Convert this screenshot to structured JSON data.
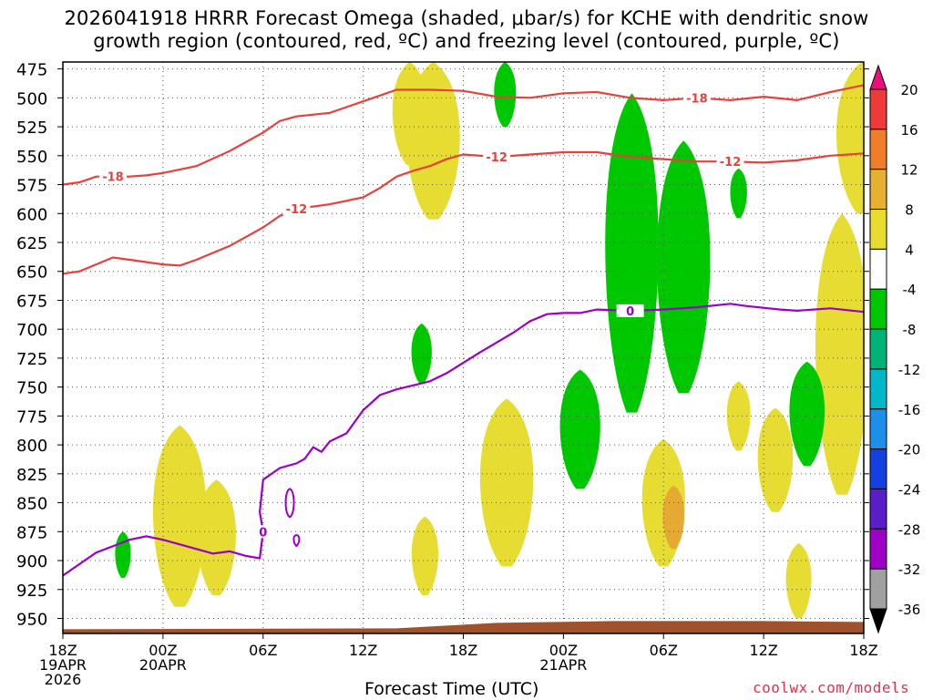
{
  "chart": {
    "title_line1": "2026041918 HRRR Forecast Omega (shaded, μbar/s) for KCHE with dendritic snow",
    "title_line2": "growth region (contoured, red, ºC) and freezing level (contoured, purple, ºC)",
    "credit": "coolwx.com/models"
  },
  "chart_data": {
    "type": "heatmap",
    "title": "2026041918 HRRR Forecast Omega (shaded, μbar/s) for KCHE with dendritic snow growth region (contoured, red, ºC) and freezing level (contoured, purple, ºC)",
    "xlabel": "Forecast Time (UTC)",
    "ylabel": "",
    "x_range_hours": [
      0,
      48
    ],
    "y_axis": "pressure (mb), inverted",
    "ylim": [
      963,
      469
    ],
    "grid": true,
    "y_ticks": [
      475,
      500,
      525,
      550,
      575,
      600,
      625,
      650,
      675,
      700,
      725,
      750,
      775,
      800,
      825,
      850,
      875,
      900,
      925,
      950
    ],
    "x_ticks": [
      {
        "h": 0,
        "lines": [
          "18Z",
          "19APR",
          "2026"
        ]
      },
      {
        "h": 6,
        "lines": [
          "00Z",
          "20APR"
        ]
      },
      {
        "h": 12,
        "lines": [
          "06Z"
        ]
      },
      {
        "h": 18,
        "lines": [
          "12Z"
        ]
      },
      {
        "h": 24,
        "lines": [
          "18Z"
        ]
      },
      {
        "h": 30,
        "lines": [
          "00Z",
          "21APR"
        ]
      },
      {
        "h": 36,
        "lines": [
          "06Z"
        ]
      },
      {
        "h": 42,
        "lines": [
          "12Z"
        ]
      },
      {
        "h": 48,
        "lines": [
          "18Z"
        ]
      }
    ],
    "colorbar": {
      "labels": [
        "20",
        "16",
        "12",
        "8",
        "4",
        "-4",
        "-8",
        "-12",
        "-16",
        "-20",
        "-24",
        "-28",
        "-32",
        "-36"
      ],
      "colors": [
        "#e8107a",
        "#ee3a38",
        "#f07e28",
        "#e8b030",
        "#e8dc30",
        "#ffffff",
        "#00c800",
        "#00b478",
        "#00b8c8",
        "#1c90e8",
        "#1440e0",
        "#5a1ec8",
        "#9e00c8",
        "#a0a0a0",
        "#000000"
      ]
    },
    "series": [
      {
        "contour": "-18",
        "points": [
          [
            0,
            575
          ],
          [
            1,
            573
          ],
          [
            2,
            568
          ],
          [
            3,
            568
          ],
          [
            4,
            568
          ],
          [
            5,
            567
          ],
          [
            6,
            565
          ],
          [
            8,
            559
          ],
          [
            10,
            546
          ],
          [
            11,
            538
          ],
          [
            12,
            530
          ],
          [
            13,
            520
          ],
          [
            14,
            516
          ],
          [
            16,
            513
          ],
          [
            17,
            508
          ],
          [
            18,
            503
          ],
          [
            20,
            493
          ],
          [
            22,
            493
          ],
          [
            24,
            494
          ],
          [
            26,
            499
          ],
          [
            28,
            500
          ],
          [
            30,
            496
          ],
          [
            32,
            495
          ],
          [
            34,
            500
          ],
          [
            36,
            502
          ],
          [
            38,
            500
          ],
          [
            40,
            502
          ],
          [
            42,
            499
          ],
          [
            44,
            502
          ],
          [
            46,
            495
          ],
          [
            48,
            489
          ]
        ],
        "labels_at_h": [
          3,
          38
        ]
      },
      {
        "contour": "-12",
        "points": [
          [
            0,
            652
          ],
          [
            1,
            650
          ],
          [
            2,
            644
          ],
          [
            3,
            638
          ],
          [
            4,
            640
          ],
          [
            6,
            644
          ],
          [
            7,
            645
          ],
          [
            8,
            640
          ],
          [
            10,
            628
          ],
          [
            11,
            620
          ],
          [
            12,
            612
          ],
          [
            13,
            602
          ],
          [
            14,
            596
          ],
          [
            16,
            592
          ],
          [
            18,
            586
          ],
          [
            19,
            578
          ],
          [
            20,
            568
          ],
          [
            21,
            563
          ],
          [
            22,
            559
          ],
          [
            23,
            553
          ],
          [
            24,
            549
          ],
          [
            26,
            551
          ],
          [
            28,
            549
          ],
          [
            30,
            547
          ],
          [
            32,
            547
          ],
          [
            34,
            551
          ],
          [
            36,
            553
          ],
          [
            38,
            555
          ],
          [
            40,
            555
          ],
          [
            42,
            556
          ],
          [
            44,
            554
          ],
          [
            46,
            550
          ],
          [
            48,
            548
          ]
        ],
        "labels_at_h": [
          15,
          26,
          40
        ]
      },
      {
        "contour": "0",
        "points": [
          [
            0,
            913
          ],
          [
            2,
            893
          ],
          [
            4,
            882
          ],
          [
            5,
            879
          ],
          [
            6,
            882
          ],
          [
            8,
            890
          ],
          [
            9,
            894
          ],
          [
            10,
            892
          ],
          [
            11,
            896
          ],
          [
            11.8,
            898
          ],
          [
            12,
            875
          ],
          [
            11.8,
            858
          ],
          [
            12,
            830
          ],
          [
            13,
            820
          ],
          [
            14,
            816
          ],
          [
            14.5,
            812
          ],
          [
            15,
            802
          ],
          [
            15.5,
            806
          ],
          [
            16,
            797
          ],
          [
            17,
            790
          ],
          [
            18,
            770
          ],
          [
            19,
            757
          ],
          [
            20,
            752
          ],
          [
            22,
            745
          ],
          [
            23,
            738
          ],
          [
            25,
            720
          ],
          [
            27,
            703
          ],
          [
            28,
            693
          ],
          [
            29,
            687
          ],
          [
            30,
            686
          ],
          [
            31,
            686
          ],
          [
            32,
            683
          ],
          [
            34,
            684
          ],
          [
            36,
            683
          ],
          [
            38,
            681
          ],
          [
            40,
            678
          ],
          [
            41,
            680
          ],
          [
            43,
            683
          ],
          [
            44,
            684
          ],
          [
            46,
            682
          ],
          [
            48,
            685
          ]
        ],
        "labels_at_h": [
          12,
          35
        ]
      }
    ],
    "shaded_regions": [
      {
        "range": "4 to 8",
        "center_h": 7,
        "top_mb": 783,
        "bottom_mb": 940
      },
      {
        "range": "4 to 8",
        "center_h": 9.2,
        "top_mb": 830,
        "bottom_mb": 930
      },
      {
        "range": "4 to 8",
        "center_h": 20.8,
        "top_mb": 469,
        "bottom_mb": 558
      },
      {
        "range": "4 to 8",
        "center_h": 22.2,
        "top_mb": 469,
        "bottom_mb": 605
      },
      {
        "range": "4 to 8",
        "center_h": 21.7,
        "top_mb": 862,
        "bottom_mb": 930
      },
      {
        "range": "4 to 8",
        "center_h": 26.6,
        "top_mb": 760,
        "bottom_mb": 905
      },
      {
        "range": "4 to 8",
        "center_h": 36,
        "top_mb": 795,
        "bottom_mb": 905
      },
      {
        "range": "8 to 12",
        "center_h": 36.6,
        "top_mb": 835,
        "bottom_mb": 890
      },
      {
        "range": "4 to 8",
        "center_h": 40.5,
        "top_mb": 745,
        "bottom_mb": 805
      },
      {
        "range": "4 to 8",
        "center_h": 42.7,
        "top_mb": 768,
        "bottom_mb": 858
      },
      {
        "range": "4 to 8",
        "center_h": 44.1,
        "top_mb": 885,
        "bottom_mb": 950
      },
      {
        "range": "4 to 8",
        "center_h": 46.7,
        "top_mb": 600,
        "bottom_mb": 843
      },
      {
        "range": "4 to 8",
        "center_h": 47.9,
        "top_mb": 469,
        "bottom_mb": 600
      },
      {
        "range": "-8 to -4",
        "center_h": 3.6,
        "top_mb": 875,
        "bottom_mb": 915
      },
      {
        "range": "-8 to -4",
        "center_h": 21.5,
        "top_mb": 695,
        "bottom_mb": 747
      },
      {
        "range": "-8 to -4",
        "center_h": 26.5,
        "top_mb": 469,
        "bottom_mb": 525
      },
      {
        "range": "-8 to -4",
        "center_h": 34.1,
        "top_mb": 496,
        "bottom_mb": 772
      },
      {
        "range": "-8 to -4",
        "center_h": 37.2,
        "top_mb": 537,
        "bottom_mb": 755
      },
      {
        "range": "-8 to -4",
        "center_h": 40.5,
        "top_mb": 561,
        "bottom_mb": 604
      },
      {
        "range": "-8 to -4",
        "center_h": 31,
        "top_mb": 735,
        "bottom_mb": 838
      },
      {
        "range": "-8 to -4",
        "center_h": 44.6,
        "top_mb": 728,
        "bottom_mb": 818
      }
    ],
    "terrain": {
      "color": "#a0522d",
      "surface_pressure_mb": 957
    }
  }
}
